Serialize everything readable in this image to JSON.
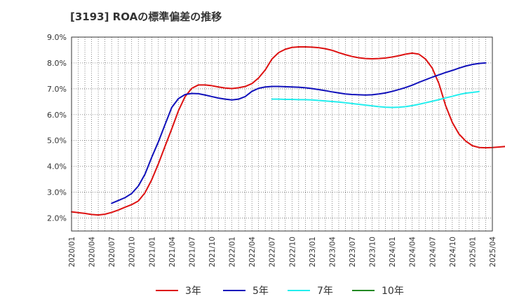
{
  "chart_data": {
    "type": "line",
    "title": "[3193]  ROAの標準偏差の推移",
    "xlabel": "",
    "ylabel": "",
    "ylim": [
      1.5,
      9.0
    ],
    "yticks": [
      2.0,
      3.0,
      4.0,
      5.0,
      6.0,
      7.0,
      8.0,
      9.0
    ],
    "ytick_labels": [
      "2.0%",
      "3.0%",
      "4.0%",
      "5.0%",
      "6.0%",
      "7.0%",
      "8.0%",
      "9.0%"
    ],
    "x_start": "2020/01",
    "x_end": "2025/04",
    "xtick_labels": [
      "2020/01",
      "2020/04",
      "2020/07",
      "2020/10",
      "2021/01",
      "2021/04",
      "2021/07",
      "2021/10",
      "2022/01",
      "2022/04",
      "2022/07",
      "2022/10",
      "2023/01",
      "2023/04",
      "2023/07",
      "2023/10",
      "2024/01",
      "2024/04",
      "2024/07",
      "2024/10",
      "2025/01",
      "2025/04"
    ],
    "grid": true,
    "legend_position": "bottom",
    "series": [
      {
        "name": "3年",
        "color": "#dd1111",
        "start": "2020/01",
        "values": [
          2.24,
          2.21,
          2.18,
          2.14,
          2.12,
          2.15,
          2.22,
          2.31,
          2.42,
          2.52,
          2.66,
          2.98,
          3.48,
          4.1,
          4.78,
          5.45,
          6.15,
          6.7,
          7.02,
          7.15,
          7.15,
          7.12,
          7.07,
          7.03,
          7.01,
          7.04,
          7.09,
          7.2,
          7.42,
          7.73,
          8.15,
          8.4,
          8.53,
          8.6,
          8.62,
          8.62,
          8.61,
          8.59,
          8.55,
          8.49,
          8.4,
          8.32,
          8.25,
          8.2,
          8.17,
          8.16,
          8.17,
          8.19,
          8.23,
          8.28,
          8.34,
          8.38,
          8.34,
          8.15,
          7.8,
          7.2,
          6.35,
          5.7,
          5.25,
          4.98,
          4.8,
          4.73,
          4.72,
          4.73,
          4.75,
          4.77
        ]
      },
      {
        "name": "5年",
        "color": "#1111bb",
        "start": "2020/07",
        "values": [
          2.57,
          2.68,
          2.79,
          2.95,
          3.24,
          3.7,
          4.35,
          4.95,
          5.62,
          6.28,
          6.62,
          6.78,
          6.82,
          6.81,
          6.76,
          6.7,
          6.64,
          6.6,
          6.57,
          6.6,
          6.7,
          6.9,
          7.02,
          7.07,
          7.09,
          7.09,
          7.08,
          7.07,
          7.06,
          7.04,
          7.01,
          6.97,
          6.93,
          6.88,
          6.84,
          6.8,
          6.78,
          6.77,
          6.76,
          6.77,
          6.8,
          6.84,
          6.9,
          6.97,
          7.05,
          7.14,
          7.25,
          7.35,
          7.45,
          7.54,
          7.63,
          7.71,
          7.8,
          7.88,
          7.94,
          7.98,
          8.0
        ]
      },
      {
        "name": "7年",
        "color": "#22eeee",
        "start": "2022/07",
        "values": [
          6.6,
          6.6,
          6.59,
          6.59,
          6.58,
          6.58,
          6.57,
          6.55,
          6.53,
          6.51,
          6.49,
          6.46,
          6.43,
          6.4,
          6.37,
          6.34,
          6.31,
          6.29,
          6.28,
          6.29,
          6.31,
          6.35,
          6.4,
          6.46,
          6.52,
          6.58,
          6.65,
          6.71,
          6.78,
          6.83,
          6.86,
          6.89
        ]
      },
      {
        "name": "10年",
        "color": "#228822",
        "start": "2020/01",
        "values": []
      }
    ]
  }
}
